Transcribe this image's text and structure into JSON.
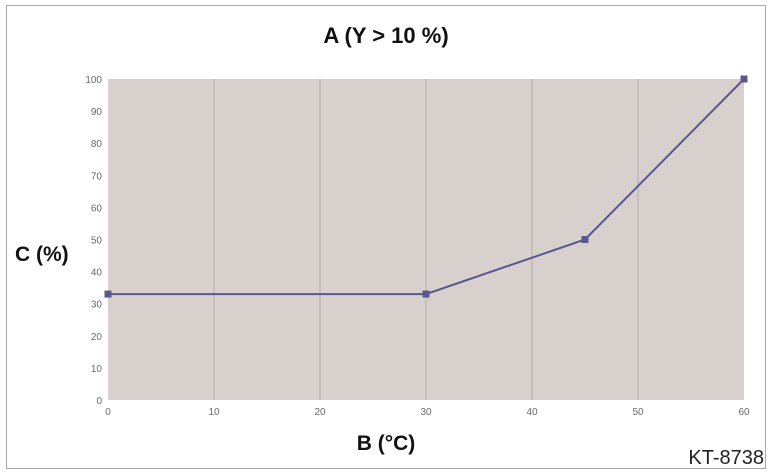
{
  "chart_data": {
    "type": "line",
    "title": "A (Y > 10 %)",
    "xlabel": "B (°C)",
    "ylabel": "C (%)",
    "x": [
      0,
      30,
      45,
      60
    ],
    "series": [
      {
        "values": [
          33,
          33,
          50,
          100
        ]
      }
    ],
    "xlim": [
      0,
      60
    ],
    "ylim": [
      0,
      100
    ],
    "xticks": [
      "0",
      "10",
      "20",
      "30",
      "40",
      "50",
      "60"
    ],
    "yticks": [
      "0",
      "10",
      "20",
      "30",
      "40",
      "50",
      "60",
      "70",
      "80",
      "90",
      "100"
    ],
    "grid": "vertical",
    "plot_background": "#d8d0cd",
    "line_color": "#5a5790"
  },
  "figure_code": "KT-8738"
}
